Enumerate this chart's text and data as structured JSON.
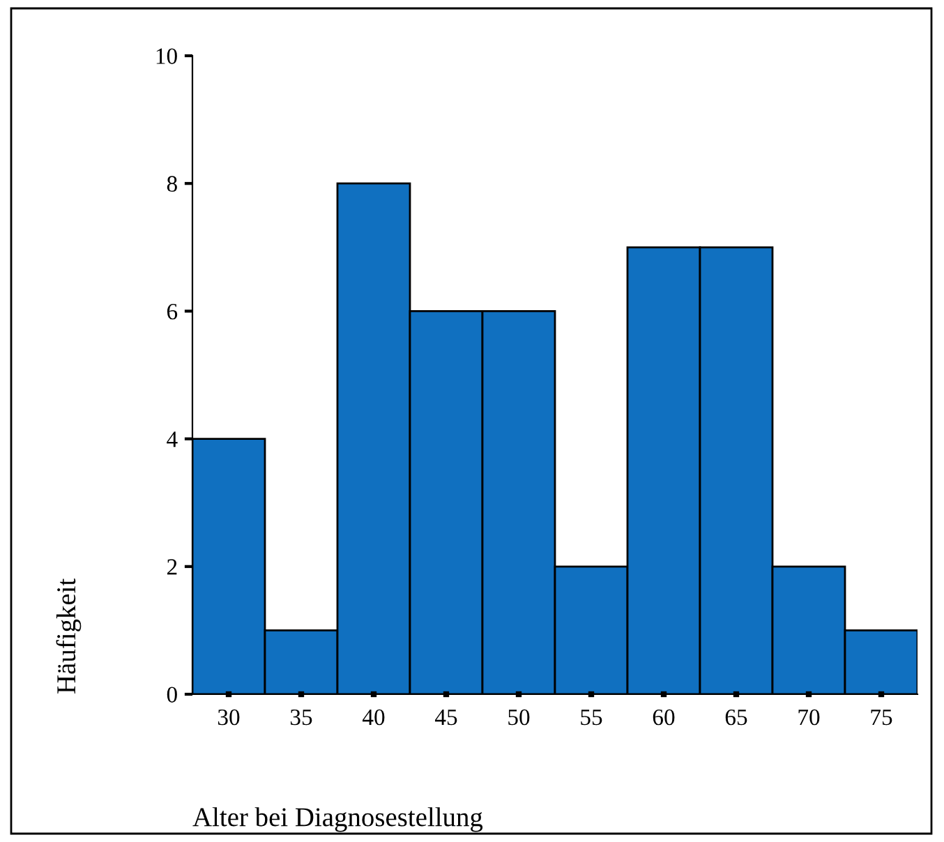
{
  "chart_data": {
    "type": "histogram",
    "xlabel": "Alter bei Diagnosestellung",
    "ylabel": "Häufigkeit",
    "bins": [
      27.5,
      32.5,
      37.5,
      42.5,
      47.5,
      52.5,
      57.5,
      62.5,
      67.5,
      72.5,
      77.5
    ],
    "values": [
      4,
      1,
      8,
      6,
      6,
      2,
      7,
      7,
      2,
      1
    ],
    "color": "#1070c0",
    "xlim": [
      27.5,
      77.5
    ],
    "xticks": [
      30,
      35,
      40,
      45,
      50,
      55,
      60,
      65,
      70,
      75
    ],
    "ylim": [
      0,
      10
    ],
    "yticks": [
      0,
      2,
      4,
      6,
      8,
      10
    ],
    "grid": false,
    "legend": false
  }
}
